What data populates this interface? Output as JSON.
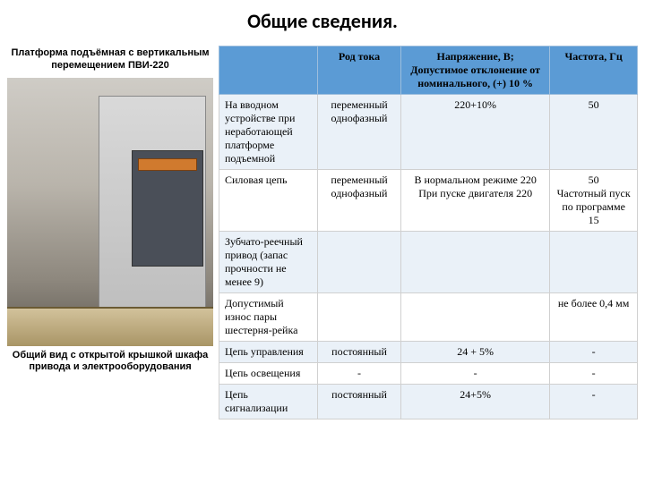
{
  "title": "Общие сведения.",
  "image": {
    "caption_top": "Платформа подъёмная с вертикальным перемещением ПВИ-220",
    "caption_bottom": "Общий вид с открытой крышкой шкафа привода и электрооборудования"
  },
  "table": {
    "head_param": "",
    "head_rod": "Род тока",
    "head_volt": "Напряжение, В; Допустимое отклонение от номинального, (+) 10 %",
    "head_freq": "Частота, Гц",
    "rows": [
      {
        "param": "На вводном устройстве при неработающей платформе подъемной",
        "rod": "переменный однофазный",
        "volt": "220+10%",
        "freq": "50"
      },
      {
        "param": "Силовая цепь",
        "rod": "переменный однофазный",
        "volt": "В нормальном режиме 220\nПри пуске двигателя   220",
        "freq": "50\nЧастотный пуск по программе 15"
      },
      {
        "param": "Зубчато-реечный привод (запас прочности не менее 9)",
        "rod": "",
        "volt": "",
        "freq": ""
      },
      {
        "param": "Допустимый износ пары шестерня-рейка",
        "rod": "",
        "volt": "",
        "freq": "не более 0,4 мм"
      },
      {
        "param": "Цепь управления",
        "rod": "постоянный",
        "volt": "24 + 5%",
        "freq": "-"
      },
      {
        "param": "Цепь освещения",
        "rod": "-",
        "volt": "-",
        "freq": "-"
      },
      {
        "param": "Цепь сигнализации",
        "rod": "постоянный",
        "volt": "24+5%",
        "freq": "-"
      }
    ]
  },
  "colors": {
    "header_bg": "#5b9bd5",
    "stripe_bg": "#eaf1f8"
  }
}
